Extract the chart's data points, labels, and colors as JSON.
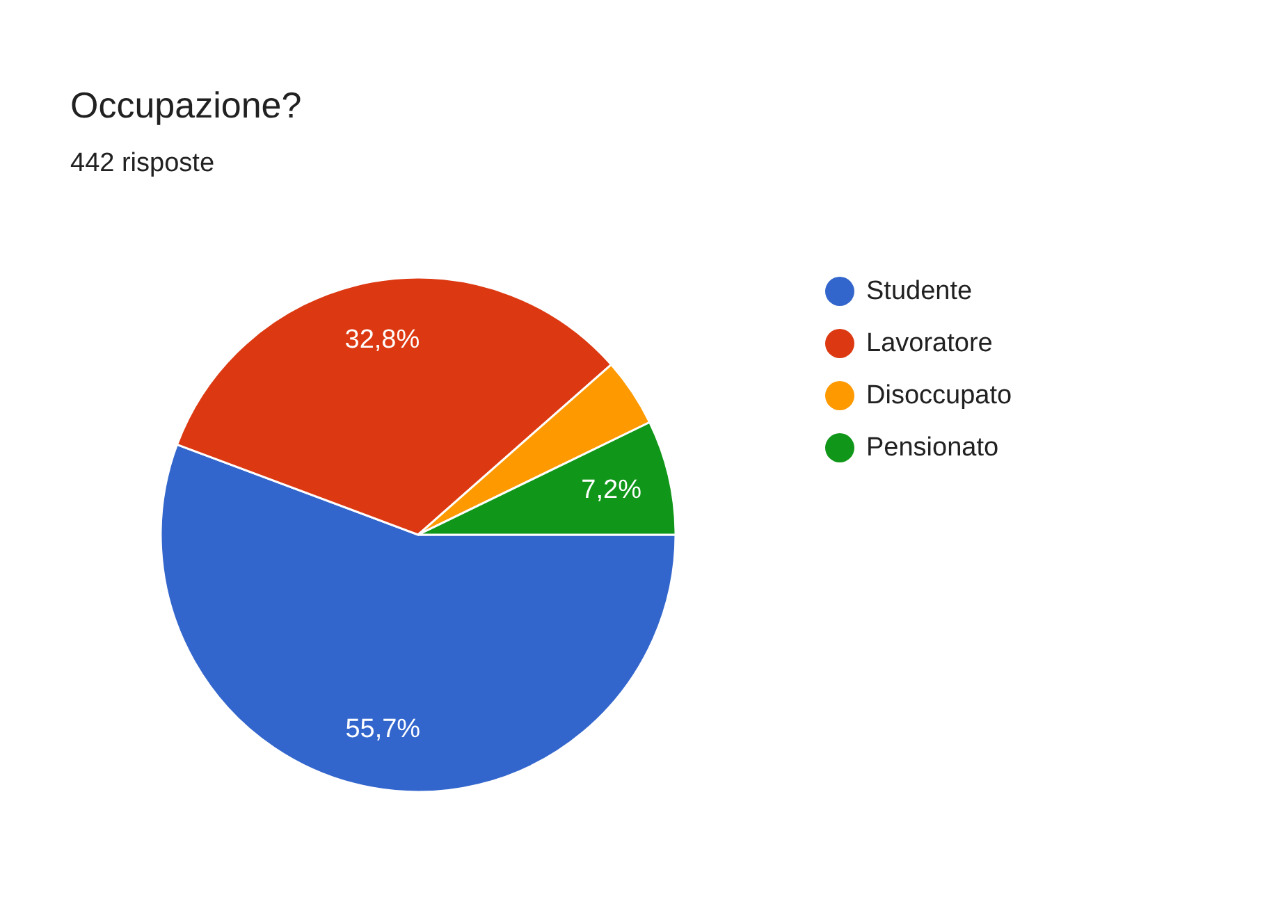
{
  "chart_data": {
    "type": "pie",
    "title": "Occupazione?",
    "subtitle": "442 risposte",
    "categories": [
      "Studente",
      "Lavoratore",
      "Disoccupato",
      "Pensionato"
    ],
    "values": [
      55.7,
      32.8,
      4.3,
      7.2
    ],
    "colors": [
      "#3366cc",
      "#dc3912",
      "#ff9900",
      "#109618"
    ],
    "value_labels": [
      "55,7%",
      "32,8%",
      null,
      "7,2%"
    ],
    "legend": "right"
  }
}
